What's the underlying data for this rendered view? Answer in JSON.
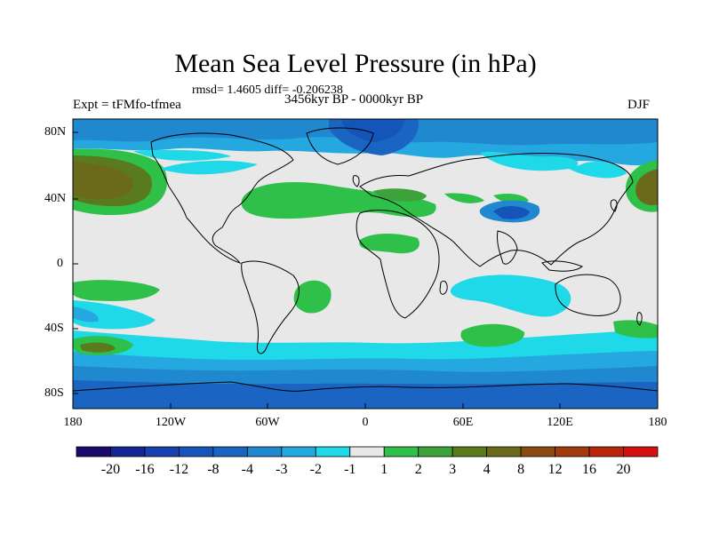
{
  "map": {
    "title": "Mean Sea Level Pressure (in hPa)",
    "stats": "rmsd= 1.4605 diff= -0.206238",
    "experiment": "Expt = tFMfo-tfmea",
    "period": "3456kyr BP - 0000kyr BP",
    "season": "DJF",
    "lat_labels": [
      "80N",
      "40N",
      "0",
      "40S",
      "80S"
    ],
    "lon_labels": [
      "180",
      "120W",
      "60W",
      "0",
      "60E",
      "120E",
      "180"
    ]
  },
  "colorbar": {
    "labels": [
      "-20",
      "-16",
      "-12",
      "-8",
      "-4",
      "-3",
      "-2",
      "-1",
      "1",
      "2",
      "3",
      "4",
      "8",
      "12",
      "16",
      "20"
    ],
    "colors": [
      "#1a0a6e",
      "#142596",
      "#1a3fb0",
      "#1554b9",
      "#1a64c2",
      "#1f88cf",
      "#25a8df",
      "#1fd8e8",
      "#e8e8e8",
      "#2fc04a",
      "#3da23a",
      "#5a7a1e",
      "#6b6a1a",
      "#8a4a12",
      "#a33a0e",
      "#b8240a",
      "#d41010"
    ]
  },
  "colors": {
    "neutral": "#e8e8e8",
    "coast": "#000000"
  }
}
